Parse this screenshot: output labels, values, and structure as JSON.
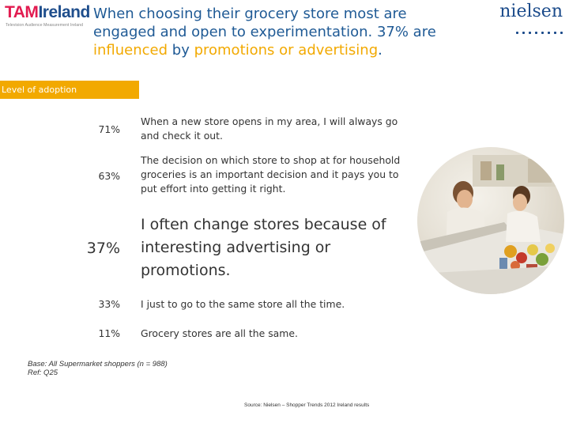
{
  "logos": {
    "tam_prefix": "TAM",
    "tam_suffix": "Ireland",
    "tam_tagline": "Television Audience Measurement Ireland",
    "nielsen": "nielsen"
  },
  "title": {
    "line1": "When choosing their grocery store  most are",
    "line2": "engaged and open to experimentation.  37% are",
    "line3_hl1": "influenced",
    "line3_by": " by ",
    "line3_hl2": "promotions or advertising",
    "line3_end": "."
  },
  "level_label": "Level of adoption",
  "rows": [
    {
      "pct": "71%",
      "text": "When a new store opens in my area, I will always go and check it out."
    },
    {
      "pct": "63%",
      "text": "The decision on which store to shop at for household groceries is an important decision and it pays you to put effort into getting it right."
    },
    {
      "pct": "37%",
      "text": "I often change stores because of interesting advertising or promotions."
    },
    {
      "pct": "33%",
      "text": "I just to go to the same store all the time."
    },
    {
      "pct": "11%",
      "text": "Grocery stores are all the same."
    }
  ],
  "base_note": "Base: All Supermarket shoppers (n = 988)",
  "ref_note": "Ref:  Q25",
  "source_note": "Source: Nielsen – Shopper Trends 2012 Ireland results",
  "colors": {
    "accent": "#f2a900",
    "title_blue": "#1f5a95"
  }
}
